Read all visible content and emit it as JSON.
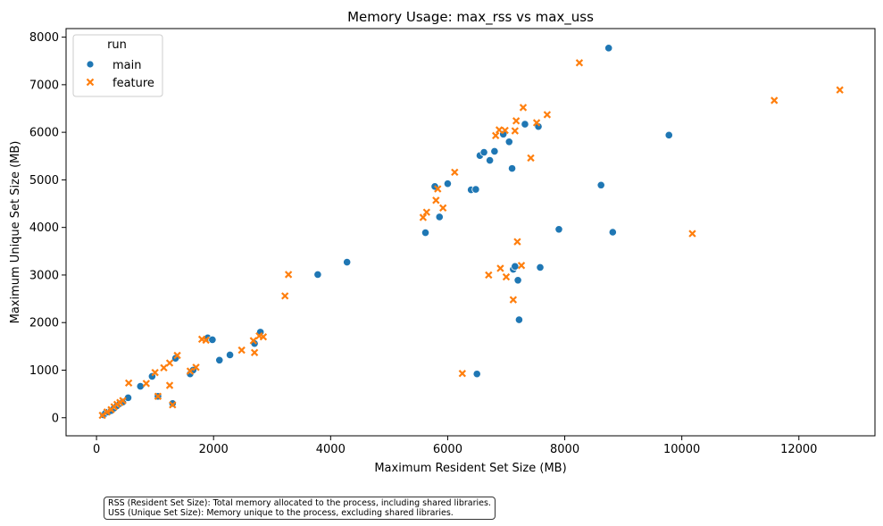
{
  "chart_data": {
    "type": "scatter",
    "title": "Memory Usage: max_rss vs max_uss",
    "xlabel": "Maximum Resident Set Size (MB)",
    "ylabel": "Maximum Unique Set Size (MB)",
    "xlim": [
      -520,
      13300
    ],
    "ylim": [
      -380,
      8180
    ],
    "xticks": [
      0,
      2000,
      4000,
      6000,
      8000,
      10000,
      12000
    ],
    "yticks": [
      0,
      1000,
      2000,
      3000,
      4000,
      5000,
      6000,
      7000,
      8000
    ],
    "legend": {
      "title": "run",
      "location": "top-left"
    },
    "series": [
      {
        "name": "main",
        "marker": "circle",
        "color": "#1f77b4",
        "points": [
          [
            120,
            60
          ],
          [
            150,
            90
          ],
          [
            200,
            120
          ],
          [
            250,
            150
          ],
          [
            300,
            200
          ],
          [
            350,
            250
          ],
          [
            400,
            300
          ],
          [
            450,
            330
          ],
          [
            540,
            420
          ],
          [
            750,
            660
          ],
          [
            950,
            870
          ],
          [
            1050,
            450
          ],
          [
            1300,
            300
          ],
          [
            1350,
            1250
          ],
          [
            1600,
            920
          ],
          [
            1650,
            1000
          ],
          [
            1900,
            1680
          ],
          [
            1980,
            1640
          ],
          [
            2100,
            1210
          ],
          [
            2280,
            1320
          ],
          [
            2700,
            1560
          ],
          [
            2800,
            1800
          ],
          [
            3780,
            3010
          ],
          [
            4280,
            3270
          ],
          [
            5620,
            3890
          ],
          [
            5780,
            4860
          ],
          [
            5860,
            4220
          ],
          [
            6000,
            4920
          ],
          [
            6400,
            4790
          ],
          [
            6480,
            4800
          ],
          [
            6500,
            920
          ],
          [
            6550,
            5510
          ],
          [
            6620,
            5580
          ],
          [
            6720,
            5410
          ],
          [
            6800,
            5600
          ],
          [
            6950,
            5960
          ],
          [
            7050,
            5800
          ],
          [
            7100,
            5240
          ],
          [
            7120,
            3120
          ],
          [
            7150,
            3180
          ],
          [
            7200,
            2890
          ],
          [
            7220,
            2060
          ],
          [
            7320,
            6170
          ],
          [
            7550,
            6120
          ],
          [
            7580,
            3160
          ],
          [
            7900,
            3960
          ],
          [
            8620,
            4890
          ],
          [
            8750,
            7770
          ],
          [
            8820,
            3900
          ],
          [
            9780,
            5940
          ]
        ]
      },
      {
        "name": "feature",
        "marker": "x",
        "color": "#ff7f0e",
        "points": [
          [
            100,
            50
          ],
          [
            180,
            120
          ],
          [
            250,
            170
          ],
          [
            300,
            230
          ],
          [
            350,
            280
          ],
          [
            400,
            320
          ],
          [
            450,
            360
          ],
          [
            550,
            730
          ],
          [
            850,
            720
          ],
          [
            1000,
            950
          ],
          [
            1050,
            450
          ],
          [
            1150,
            1050
          ],
          [
            1250,
            680
          ],
          [
            1250,
            1150
          ],
          [
            1300,
            270
          ],
          [
            1380,
            1310
          ],
          [
            1600,
            980
          ],
          [
            1700,
            1060
          ],
          [
            1800,
            1650
          ],
          [
            1870,
            1630
          ],
          [
            2480,
            1420
          ],
          [
            2680,
            1620
          ],
          [
            2700,
            1370
          ],
          [
            2780,
            1720
          ],
          [
            2850,
            1700
          ],
          [
            3220,
            2560
          ],
          [
            3280,
            3010
          ],
          [
            5580,
            4210
          ],
          [
            5640,
            4320
          ],
          [
            5800,
            4570
          ],
          [
            5830,
            4810
          ],
          [
            5920,
            4410
          ],
          [
            6120,
            5160
          ],
          [
            6250,
            930
          ],
          [
            6700,
            3000
          ],
          [
            6820,
            5930
          ],
          [
            6880,
            6050
          ],
          [
            6900,
            3140
          ],
          [
            6980,
            6040
          ],
          [
            7000,
            2960
          ],
          [
            7120,
            2480
          ],
          [
            7150,
            6030
          ],
          [
            7170,
            6240
          ],
          [
            7190,
            3700
          ],
          [
            7260,
            3200
          ],
          [
            7290,
            6520
          ],
          [
            7420,
            5460
          ],
          [
            7520,
            6200
          ],
          [
            7700,
            6370
          ],
          [
            8250,
            7460
          ],
          [
            10180,
            3870
          ],
          [
            11580,
            6670
          ],
          [
            12700,
            6890
          ]
        ]
      }
    ]
  },
  "note": {
    "line1": "RSS (Resident Set Size): Total memory allocated to the process, including shared libraries.",
    "line2": "USS (Unique Set Size): Memory unique to the process, excluding shared libraries."
  }
}
